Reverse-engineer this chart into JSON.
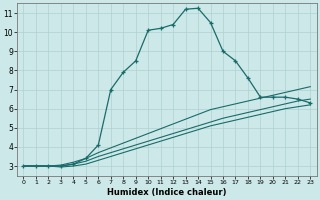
{
  "xlabel": "Humidex (Indice chaleur)",
  "bg_color": "#cce8e8",
  "grid_color": "#b0d0d0",
  "line_color": "#1a6b6b",
  "xlim": [
    -0.5,
    23.5
  ],
  "ylim": [
    2.5,
    11.5
  ],
  "xticks": [
    0,
    1,
    2,
    3,
    4,
    5,
    6,
    7,
    8,
    9,
    10,
    11,
    12,
    13,
    14,
    15,
    16,
    17,
    18,
    19,
    20,
    21,
    22,
    23
  ],
  "yticks": [
    3,
    4,
    5,
    6,
    7,
    8,
    9,
    10,
    11
  ],
  "main_x": [
    0,
    1,
    2,
    3,
    4,
    5,
    6,
    7,
    8,
    9,
    10,
    11,
    12,
    13,
    14,
    15,
    16,
    17,
    18,
    19,
    20,
    21,
    22,
    23
  ],
  "main_y": [
    3.0,
    3.0,
    3.0,
    3.0,
    3.1,
    3.4,
    4.1,
    7.0,
    7.9,
    8.5,
    10.1,
    10.2,
    10.4,
    11.2,
    11.25,
    10.5,
    9.0,
    8.5,
    7.6,
    6.6,
    6.6,
    6.6,
    6.5,
    6.3
  ],
  "line2_x": [
    0,
    1,
    2,
    3,
    4,
    5,
    6,
    7,
    8,
    9,
    10,
    11,
    12,
    13,
    14,
    15,
    16,
    17,
    18,
    19,
    20,
    21,
    22,
    23
  ],
  "line2_y": [
    3.0,
    3.0,
    3.0,
    3.05,
    3.2,
    3.4,
    3.7,
    3.95,
    4.2,
    4.45,
    4.7,
    4.95,
    5.2,
    5.45,
    5.7,
    5.95,
    6.1,
    6.25,
    6.4,
    6.55,
    6.7,
    6.85,
    7.0,
    7.15
  ],
  "line3_x": [
    0,
    1,
    2,
    3,
    4,
    5,
    6,
    7,
    8,
    9,
    10,
    11,
    12,
    13,
    14,
    15,
    16,
    17,
    18,
    19,
    20,
    21,
    22,
    23
  ],
  "line3_y": [
    3.0,
    3.0,
    3.0,
    3.0,
    3.1,
    3.25,
    3.5,
    3.7,
    3.9,
    4.1,
    4.3,
    4.5,
    4.7,
    4.9,
    5.1,
    5.3,
    5.5,
    5.65,
    5.8,
    5.95,
    6.1,
    6.25,
    6.4,
    6.5
  ],
  "line4_x": [
    0,
    1,
    2,
    3,
    4,
    5,
    6,
    7,
    8,
    9,
    10,
    11,
    12,
    13,
    14,
    15,
    16,
    17,
    18,
    19,
    20,
    21,
    22,
    23
  ],
  "line4_y": [
    3.0,
    3.0,
    3.0,
    2.95,
    3.0,
    3.1,
    3.3,
    3.5,
    3.7,
    3.9,
    4.1,
    4.3,
    4.5,
    4.7,
    4.9,
    5.1,
    5.25,
    5.4,
    5.55,
    5.7,
    5.85,
    6.0,
    6.1,
    6.2
  ]
}
